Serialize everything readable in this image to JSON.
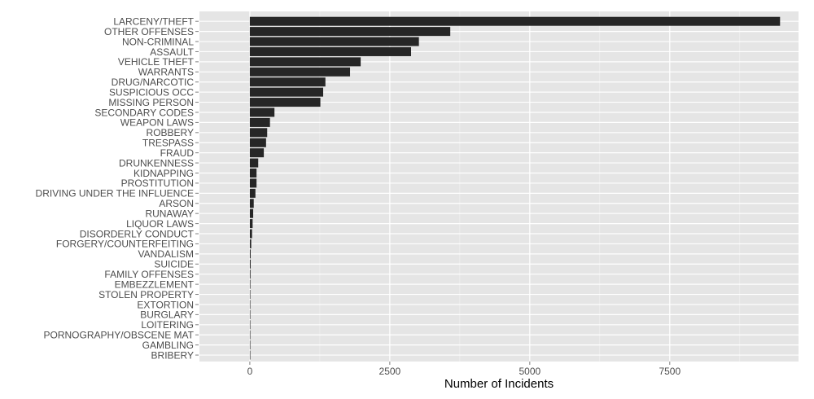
{
  "chart_data": {
    "type": "bar",
    "orientation": "horizontal",
    "title": "",
    "xlabel": "Number of Incidents",
    "ylabel": "",
    "xlim": [
      -900,
      9800
    ],
    "xticks": [
      0,
      2500,
      5000,
      7500
    ],
    "xtick_labels": [
      "0",
      "2500",
      "5000",
      "7500"
    ],
    "grid": true,
    "colors": {
      "bar": "#262626",
      "panel": "#e5e5e5",
      "grid": "#ffffff"
    },
    "categories": [
      "LARCENY/THEFT",
      "OTHER OFFENSES",
      "NON-CRIMINAL",
      "ASSAULT",
      "VEHICLE THEFT",
      "WARRANTS",
      "DRUG/NARCOTIC",
      "SUSPICIOUS OCC",
      "MISSING PERSON",
      "SECONDARY CODES",
      "WEAPON LAWS",
      "ROBBERY",
      "TRESPASS",
      "FRAUD",
      "DRUNKENNESS",
      "KIDNAPPING",
      "PROSTITUTION",
      "DRIVING UNDER THE INFLUENCE",
      "ARSON",
      "RUNAWAY",
      "LIQUOR LAWS",
      "DISORDERLY CONDUCT",
      "FORGERY/COUNTERFEITING",
      "VANDALISM",
      "SUICIDE",
      "FAMILY OFFENSES",
      "EMBEZZLEMENT",
      "STOLEN PROPERTY",
      "EXTORTION",
      "BURGLARY",
      "LOITERING",
      "PORNOGRAPHY/OBSCENE MAT",
      "GAMBLING",
      "BRIBERY"
    ],
    "values": [
      9470,
      3580,
      3020,
      2880,
      1980,
      1790,
      1350,
      1310,
      1260,
      440,
      360,
      310,
      290,
      250,
      150,
      120,
      120,
      100,
      70,
      60,
      50,
      40,
      25,
      15,
      15,
      12,
      10,
      8,
      6,
      5,
      3,
      2,
      1,
      1
    ]
  }
}
